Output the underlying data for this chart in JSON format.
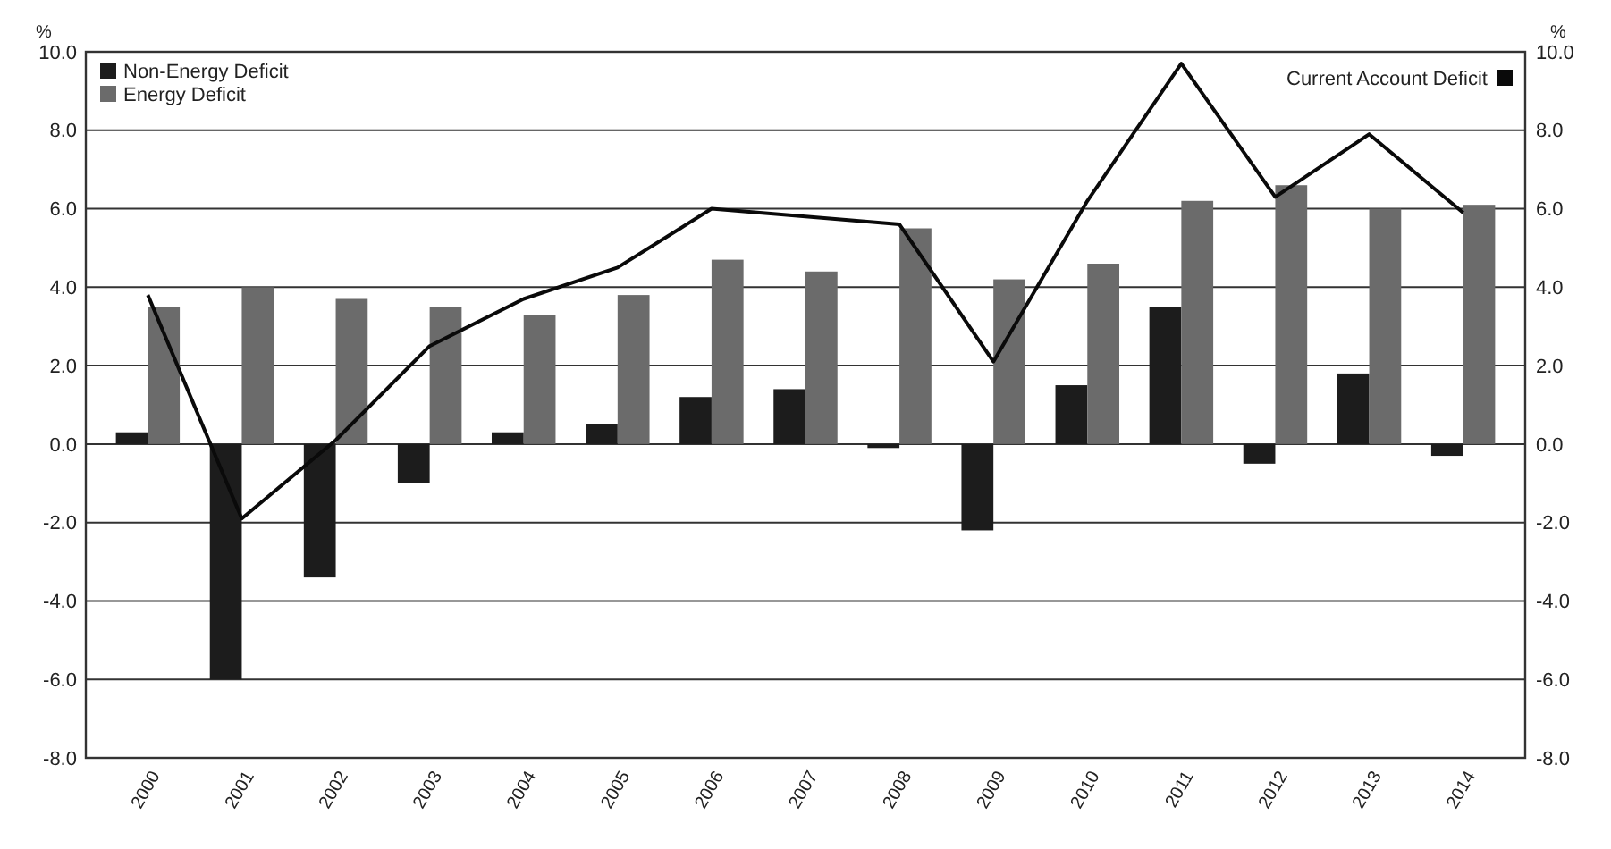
{
  "chart_data": {
    "type": "bar",
    "ylabel": "%",
    "y2label": "%",
    "categories": [
      "2000",
      "2001",
      "2002",
      "2003",
      "2004",
      "2005",
      "2006",
      "2007",
      "2008",
      "2009",
      "2010",
      "2011",
      "2012",
      "2013",
      "2014"
    ],
    "series": [
      {
        "name": "Non-Energy Deficit",
        "color": "#1c1c1c",
        "values": [
          0.3,
          -6.0,
          -3.4,
          -1.0,
          0.3,
          0.5,
          1.2,
          1.4,
          -0.1,
          -2.2,
          1.5,
          3.5,
          -0.5,
          1.8,
          -0.3
        ]
      },
      {
        "name": "Energy Deficit",
        "color": "#6b6b6b",
        "values": [
          3.5,
          4.0,
          3.7,
          3.5,
          3.3,
          3.8,
          4.7,
          4.4,
          5.5,
          4.2,
          4.6,
          6.2,
          6.6,
          6.0,
          6.1
        ]
      },
      {
        "name": "Current Account Deficit",
        "type": "line",
        "axis": "y2",
        "color": "#0a0a0a",
        "values": [
          3.8,
          -1.9,
          0.1,
          2.5,
          3.7,
          4.5,
          6.0,
          5.8,
          5.6,
          2.1,
          6.2,
          9.7,
          6.3,
          7.9,
          5.9
        ]
      }
    ],
    "ylim": [
      -8,
      10
    ],
    "yticks": [
      {
        "value": -8,
        "label": "-8.0"
      },
      {
        "value": -6,
        "label": "-6.0"
      },
      {
        "value": -4,
        "label": "-4.0"
      },
      {
        "value": -2,
        "label": "-2.0"
      },
      {
        "value": 0,
        "label": "0.0"
      },
      {
        "value": 2,
        "label": "2.0"
      },
      {
        "value": 4,
        "label": "4.0"
      },
      {
        "value": 6,
        "label": "6.0"
      },
      {
        "value": 8,
        "label": "8.0"
      },
      {
        "value": 10,
        "label": "10.0"
      }
    ],
    "y2lim": [
      -8,
      10
    ],
    "y2ticks": [
      {
        "value": -8,
        "label": "-8.0"
      },
      {
        "value": -6,
        "label": "-6.0"
      },
      {
        "value": -4,
        "label": "-4.0"
      },
      {
        "value": -2,
        "label": "-2.0"
      },
      {
        "value": 0,
        "label": "0.0"
      },
      {
        "value": 2,
        "label": "2.0"
      },
      {
        "value": 4,
        "label": "4.0"
      },
      {
        "value": 6,
        "label": "6.0"
      },
      {
        "value": 8,
        "label": "8.0"
      },
      {
        "value": 10,
        "label": "10.0"
      }
    ],
    "grid": "y",
    "legend": "top",
    "marker": "none",
    "line_style": "solid"
  }
}
